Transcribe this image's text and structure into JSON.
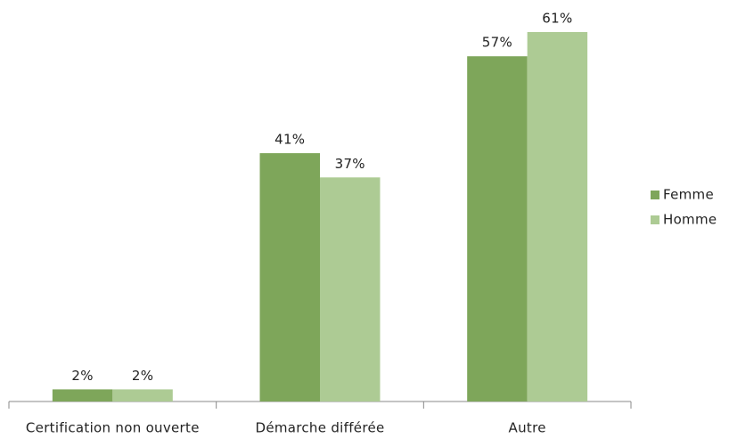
{
  "chart_data": {
    "type": "bar",
    "categories": [
      "Certification non ouverte",
      "Démarche différée",
      "Autre"
    ],
    "series": [
      {
        "name": "Femme",
        "color": "#7ea65a",
        "values": [
          2,
          41,
          57
        ],
        "value_labels": [
          "2%",
          "41%",
          "57%"
        ]
      },
      {
        "name": "Homme",
        "color": "#adcb94",
        "values": [
          2,
          37,
          61
        ],
        "value_labels": [
          "2%",
          "37%",
          "61%"
        ]
      }
    ],
    "legend": "right"
  }
}
